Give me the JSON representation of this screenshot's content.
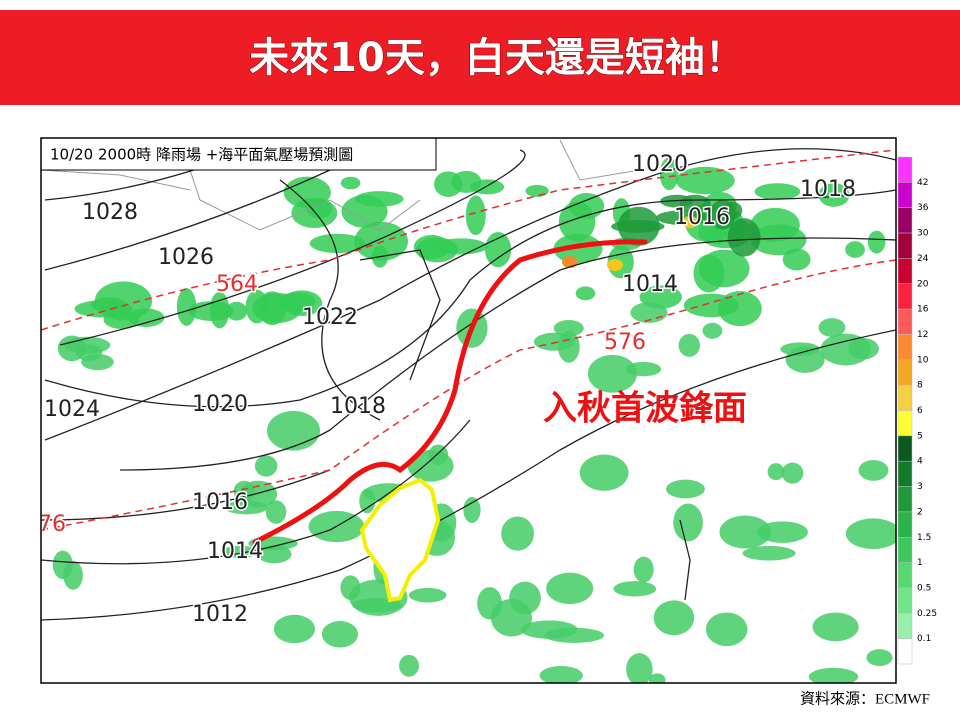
{
  "header": {
    "title": "未來10天，白天還是短袖！"
  },
  "map": {
    "caption": "10/20 2000時  降雨場 +海平面氣壓場預測圖",
    "isobar_labels": [
      1028,
      1026,
      1022,
      1024,
      1020,
      1018,
      1016,
      1014,
      1012,
      1020,
      1018,
      1016,
      1014
    ],
    "height_labels": [
      564,
      576,
      76
    ],
    "annotation": "入秋首波鋒面",
    "legend": {
      "labels": [
        42,
        36,
        30,
        24,
        20,
        16,
        12,
        10,
        8,
        6,
        5,
        4,
        3,
        2,
        1.5,
        1,
        0.5,
        0.25,
        0.1
      ]
    }
  },
  "source": "資料來源：ECMWF"
}
